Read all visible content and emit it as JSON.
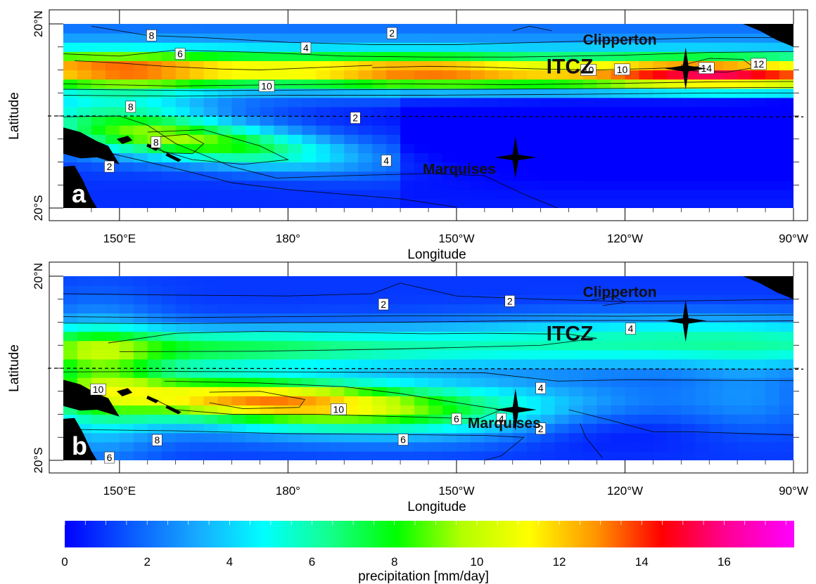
{
  "panels": [
    {
      "id": "a",
      "letter": "a",
      "ylabel": "Latitude",
      "xlabel": "Longitude",
      "lat_ticks": [
        "20°N",
        "20°S"
      ],
      "lon_ticks": [
        "150°E",
        "180°",
        "150°W",
        "120°W",
        "90°W"
      ],
      "places": [
        {
          "key": "clipperton",
          "name": "Clipperton",
          "lon": -109.2,
          "lat": 10.3,
          "label_lon": -127.5,
          "label_lat": 15.5
        },
        {
          "key": "marquises",
          "name": "Marquises",
          "lon": -139.5,
          "lat": -9.0,
          "label_lon": -156.0,
          "label_lat": -12.6
        },
        {
          "key": "itcz",
          "name": "ITCZ",
          "label_lon": -134.0,
          "label_lat": 9.2
        }
      ],
      "contour_labels": [
        {
          "text": "2",
          "lon": -161.5,
          "lat": 18.0
        },
        {
          "text": "4",
          "lon": -176.8,
          "lat": 14.8
        },
        {
          "text": "6",
          "lon": 160.8,
          "lat": 13.5
        },
        {
          "text": "8",
          "lon": 155.7,
          "lat": 17.5
        },
        {
          "text": "10",
          "lon": 176.2,
          "lat": 6.5
        },
        {
          "text": "8",
          "lon": 152.0,
          "lat": 2.0
        },
        {
          "text": "2",
          "lon": -168.0,
          "lat": -0.4
        },
        {
          "text": "8",
          "lon": 156.5,
          "lat": -5.7
        },
        {
          "text": "2",
          "lon": 148.2,
          "lat": -11.0
        },
        {
          "text": "4",
          "lon": -162.5,
          "lat": -9.7
        },
        {
          "text": "10",
          "lon": -126.5,
          "lat": 10.0
        },
        {
          "text": "10",
          "lon": -120.5,
          "lat": 10.1
        },
        {
          "text": "14",
          "lon": -105.5,
          "lat": 10.4
        },
        {
          "text": "12",
          "lon": -96.2,
          "lat": 11.3
        }
      ]
    },
    {
      "id": "b",
      "letter": "b",
      "ylabel": "Latitude",
      "xlabel": "Longitude",
      "lat_ticks": [
        "20°N",
        "20°S"
      ],
      "lon_ticks": [
        "150°E",
        "180°",
        "150°W",
        "120°W",
        "90°W"
      ],
      "places": [
        {
          "key": "clipperton",
          "name": "Clipperton",
          "lon": -109.2,
          "lat": 10.3,
          "label_lon": -127.5,
          "label_lat": 15.5
        },
        {
          "key": "marquises",
          "name": "Marquises",
          "lon": -139.5,
          "lat": -9.0,
          "label_lon": -148.0,
          "label_lat": -13.0
        },
        {
          "key": "itcz",
          "name": "ITCZ",
          "label_lon": -134.0,
          "label_lat": 6.0
        }
      ],
      "contour_labels": [
        {
          "text": "2",
          "lon": -163.0,
          "lat": 13.9
        },
        {
          "text": "2",
          "lon": -140.5,
          "lat": 14.6
        },
        {
          "text": "4",
          "lon": -119.0,
          "lat": 8.6
        },
        {
          "text": "10",
          "lon": 146.2,
          "lat": -4.6
        },
        {
          "text": "4",
          "lon": -135.0,
          "lat": -4.3
        },
        {
          "text": "10",
          "lon": -171.0,
          "lat": -8.9
        },
        {
          "text": "6",
          "lon": -150.0,
          "lat": -11.0
        },
        {
          "text": "4",
          "lon": -142.0,
          "lat": -11.0
        },
        {
          "text": "2",
          "lon": -135.0,
          "lat": -13.1
        },
        {
          "text": "8",
          "lon": 156.7,
          "lat": -15.6
        },
        {
          "text": "6",
          "lon": -159.5,
          "lat": -15.5
        },
        {
          "text": "6",
          "lon": 148.2,
          "lat": -19.4
        }
      ]
    }
  ],
  "colorbar": {
    "title": "precipitation [mm/day]",
    "min": 0,
    "max": 17.7,
    "ticks": [
      "0",
      "2",
      "4",
      "6",
      "8",
      "10",
      "12",
      "14",
      "16"
    ],
    "colors": [
      "#0000ff",
      "#0a5aff",
      "#17aaff",
      "#00ffff",
      "#14ff8c",
      "#00ff00",
      "#b4ff00",
      "#ffff00",
      "#ff9600",
      "#ff0000",
      "#ff0096",
      "#ff00ff"
    ]
  },
  "chart_data": {
    "type": "heatmap",
    "title": "",
    "xlabel": "Longitude",
    "ylabel": "Latitude",
    "colorbar_label": "precipitation [mm/day]",
    "zlim": [
      0,
      17.7
    ],
    "xlim": [
      "140°E",
      "90°W"
    ],
    "ylim": [
      "20°S",
      "20°N"
    ],
    "x_ticks": [
      "150°E",
      "180°",
      "150°W",
      "120°W",
      "90°W"
    ],
    "y_ticks": [
      "20°S",
      "20°N"
    ],
    "contour_levels": [
      2,
      4,
      6,
      8,
      10,
      12,
      14
    ],
    "panels": [
      "a",
      "b"
    ]
  }
}
